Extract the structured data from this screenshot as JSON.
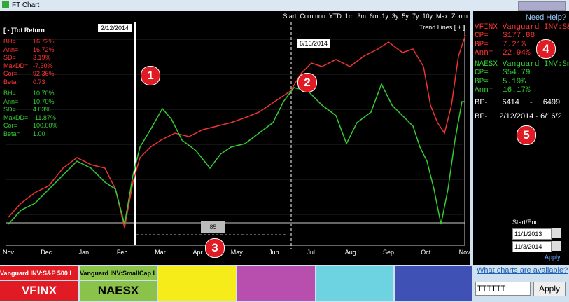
{
  "window": {
    "title": "FT Chart"
  },
  "toolbar": {
    "ranges": [
      "Start",
      "Common",
      "YTD",
      "1m",
      "3m",
      "6m",
      "1y",
      "3y",
      "5y",
      "7y",
      "10y",
      "Max",
      "Zoom"
    ],
    "trend_lines": "Trend Lines [ + ]"
  },
  "stats": {
    "header": "[ - ]Tot Return",
    "fund1": [
      [
        "BH=",
        "16.72%"
      ],
      [
        "Ann=",
        "16.72%"
      ],
      [
        "SD=",
        "3.19%"
      ],
      [
        "MaxDD=",
        "-7.30%"
      ],
      [
        "Cor=",
        "92.36%"
      ],
      [
        "Beta=",
        "0.73"
      ]
    ],
    "fund2": [
      [
        "BH=",
        "10.70%"
      ],
      [
        "Ann=",
        "10.70%"
      ],
      [
        "SD=",
        "4.03%"
      ],
      [
        "MaxDD=",
        "-11.87%"
      ],
      [
        "Cor=",
        "100.00%"
      ],
      [
        "Beta=",
        "1.00"
      ]
    ]
  },
  "chart": {
    "months": [
      "Nov",
      "Dec",
      "Jan",
      "Feb",
      "Mar",
      "Apr",
      "May",
      "Jun",
      "Jul",
      "Aug",
      "Sep",
      "Oct",
      "Nov"
    ],
    "marker1": "2/12/2014",
    "marker2": "6/16/2014",
    "bar_label": "85"
  },
  "annotations": [
    "1",
    "2",
    "3",
    "4",
    "5"
  ],
  "panel": {
    "help": "Need Help?",
    "fund1": {
      "name": "VFINX Vanguard INV:S&P",
      "rows": [
        [
          "CP=",
          "$177.88"
        ],
        [
          "BP=",
          "7.21%"
        ],
        [
          "Ann=",
          "22.94%"
        ]
      ]
    },
    "fund2": {
      "name": "NAESX Vanguard INV:Sma",
      "rows": [
        [
          "CP=",
          "$54.79"
        ],
        [
          "BP=",
          "5.19%"
        ],
        [
          "Ann=",
          "16.17%"
        ]
      ]
    },
    "bp_range": [
      "BP-",
      "6414",
      "-",
      "6499"
    ],
    "bp_dates": [
      "BP-",
      "2/12/2014 - 6/16/2"
    ],
    "start_end": "Start/End:",
    "start": "11/1/2013",
    "end": "11/3/2014",
    "apply": "Apply",
    "what_charts": "What charts are available?",
    "input": "TTTTTT",
    "apply_button": "Apply"
  },
  "legend": [
    {
      "name": "Vanguard INV:S&P 500 I",
      "ticker": "VFINX"
    },
    {
      "name": "Vanguard INV:SmallCap I",
      "ticker": "NAESX"
    }
  ]
}
